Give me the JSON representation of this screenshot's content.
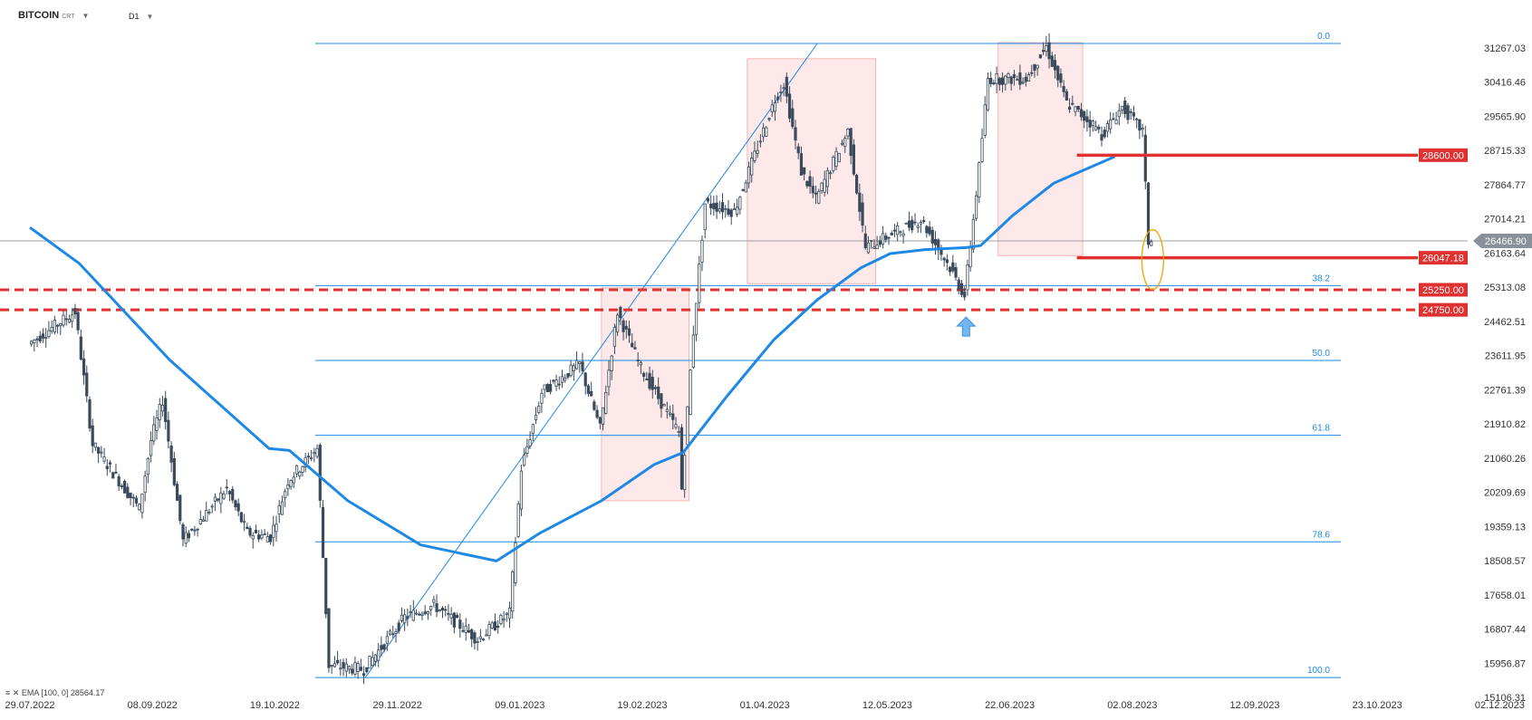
{
  "header": {
    "symbol": "BITCOIN",
    "symbol_suffix": "CRT",
    "timeframe": "D1"
  },
  "indicator_legend": "EMA [100, 0] 28564.17",
  "chart_data": {
    "type": "candlestick",
    "ylim": [
      15106.31,
      31267.03
    ],
    "y_ticks": [
      "31267.03",
      "30416.46",
      "29565.90",
      "28715.33",
      "27864.77",
      "27014.21",
      "26163.64",
      "25313.08",
      "24462.51",
      "23611.95",
      "22761.39",
      "21910.82",
      "21060.26",
      "20209.69",
      "19359.13",
      "18508.57",
      "17658.01",
      "16807.44",
      "15956.87",
      "15106.31"
    ],
    "x_ticks": [
      "29.07.2022",
      "08.09.2022",
      "19.10.2022",
      "29.11.2022",
      "09.01.2023",
      "19.02.2023",
      "01.04.2023",
      "12.05.2023",
      "22.06.2023",
      "02.08.2023",
      "12.09.2023",
      "23.10.2023",
      "02.12.2023"
    ],
    "current_price": 26466.9,
    "price_path": [
      [
        "2022-07-29",
        23900
      ],
      [
        "2022-08-14",
        24700
      ],
      [
        "2022-08-20",
        21400
      ],
      [
        "2022-09-05",
        19800
      ],
      [
        "2022-09-09",
        21500
      ],
      [
        "2022-09-13",
        22500
      ],
      [
        "2022-09-20",
        19000
      ],
      [
        "2022-10-05",
        20300
      ],
      [
        "2022-10-12",
        19200
      ],
      [
        "2022-10-20",
        19100
      ],
      [
        "2022-10-26",
        20500
      ],
      [
        "2022-11-05",
        21300
      ],
      [
        "2022-11-09",
        15900
      ],
      [
        "2022-11-21",
        15800
      ],
      [
        "2022-12-05",
        17100
      ],
      [
        "2022-12-15",
        17400
      ],
      [
        "2022-12-30",
        16550
      ],
      [
        "2023-01-10",
        17200
      ],
      [
        "2023-01-14",
        20800
      ],
      [
        "2023-01-21",
        22700
      ],
      [
        "2023-02-03",
        23400
      ],
      [
        "2023-02-10",
        21800
      ],
      [
        "2023-02-16",
        24700
      ],
      [
        "2023-02-24",
        23300
      ],
      [
        "2023-03-09",
        21700
      ],
      [
        "2023-03-10",
        20300
      ],
      [
        "2023-03-14",
        24200
      ],
      [
        "2023-03-18",
        27400
      ],
      [
        "2023-03-28",
        27200
      ],
      [
        "2023-04-11",
        30000
      ],
      [
        "2023-04-14",
        30400
      ],
      [
        "2023-04-20",
        28200
      ],
      [
        "2023-04-25",
        27500
      ],
      [
        "2023-05-06",
        29200
      ],
      [
        "2023-05-12",
        26300
      ],
      [
        "2023-05-31",
        27000
      ],
      [
        "2023-06-10",
        25800
      ],
      [
        "2023-06-15",
        25100
      ],
      [
        "2023-06-20",
        28300
      ],
      [
        "2023-06-23",
        30500
      ],
      [
        "2023-07-06",
        30500
      ],
      [
        "2023-07-13",
        31300
      ],
      [
        "2023-07-20",
        29900
      ],
      [
        "2023-07-30",
        29300
      ],
      [
        "2023-08-01",
        29100
      ],
      [
        "2023-08-08",
        29800
      ],
      [
        "2023-08-15",
        29200
      ],
      [
        "2023-08-17",
        26450
      ],
      [
        "2023-08-18",
        26466.9
      ]
    ],
    "ema100": [
      [
        "2022-07-29",
        26800
      ],
      [
        "2022-08-15",
        25900
      ],
      [
        "2022-09-15",
        23500
      ],
      [
        "2022-10-19",
        21300
      ],
      [
        "2022-10-26",
        21250
      ],
      [
        "2022-11-15",
        20000
      ],
      [
        "2022-12-10",
        18900
      ],
      [
        "2023-01-05",
        18500
      ],
      [
        "2023-01-20",
        19200
      ],
      [
        "2023-02-10",
        20000
      ],
      [
        "2023-02-28",
        20900
      ],
      [
        "2023-03-10",
        21200
      ],
      [
        "2023-03-25",
        22600
      ],
      [
        "2023-04-10",
        24000
      ],
      [
        "2023-04-25",
        25000
      ],
      [
        "2023-05-10",
        25800
      ],
      [
        "2023-05-20",
        26150
      ],
      [
        "2023-06-01",
        26250
      ],
      [
        "2023-06-15",
        26300
      ],
      [
        "2023-06-20",
        26350
      ],
      [
        "2023-07-01",
        27100
      ],
      [
        "2023-07-15",
        27900
      ],
      [
        "2023-08-05",
        28564.17
      ]
    ],
    "fibonacci": {
      "high": 31380,
      "low": 15600,
      "levels": [
        {
          "label": "0.0",
          "ratio": 0.0
        },
        {
          "label": "38.2",
          "ratio": 0.382
        },
        {
          "label": "50.0",
          "ratio": 0.5
        },
        {
          "label": "61.8",
          "ratio": 0.618
        },
        {
          "label": "78.6",
          "ratio": 0.786
        },
        {
          "label": "100.0",
          "ratio": 1.0
        }
      ]
    },
    "solid_levels": [
      {
        "value": 28600.0,
        "label": "28600.00",
        "from": "2023-07-23"
      },
      {
        "value": 26047.18,
        "label": "26047.18",
        "from": "2023-07-23"
      }
    ],
    "dashed_levels": [
      {
        "value": 25250.0,
        "label": "25250.00"
      },
      {
        "value": 24750.0,
        "label": "24750.00"
      }
    ],
    "zones": [
      {
        "from": "2023-02-10",
        "to": "2023-03-12",
        "top": 25300,
        "bottom": 20000
      },
      {
        "from": "2023-04-01",
        "to": "2023-05-15",
        "top": 31000,
        "bottom": 25400
      },
      {
        "from": "2023-06-26",
        "to": "2023-07-25",
        "top": 31400,
        "bottom": 26100
      }
    ],
    "trendline": [
      [
        "2022-11-21",
        15600
      ],
      [
        "2023-04-25",
        31380
      ]
    ],
    "colors": {
      "ema": "#1e88e5",
      "fib": "#1e88e5",
      "candle": "#3a4a5a",
      "level": "#e03131",
      "zone_fill": "#fde6e6",
      "zone_stroke": "#f4a6a6",
      "current_tag": "#8a9099",
      "oval": "#f0a500",
      "arrow": "#74b7f0"
    }
  }
}
